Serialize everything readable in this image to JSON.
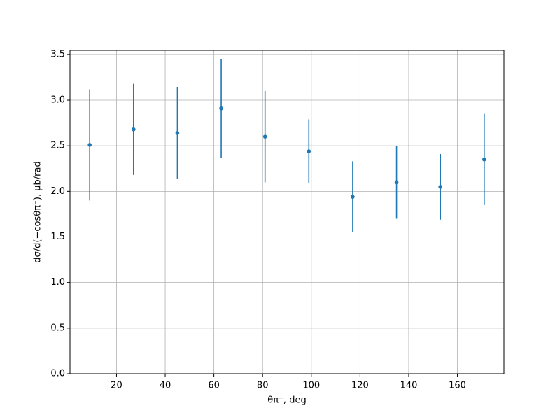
{
  "chart_data": {
    "type": "scatter",
    "x_label": "θπ⁻, deg",
    "y_label": "dσ/d(−cosθπ⁻), μb/rad",
    "x": [
      9,
      27,
      45,
      63,
      81,
      99,
      117,
      135,
      153,
      171
    ],
    "series": [
      {
        "color": "#1f77b4",
        "values": [
          2.51,
          2.68,
          2.64,
          2.91,
          2.6,
          2.44,
          1.94,
          2.1,
          2.05,
          2.35
        ],
        "errors": [
          0.61,
          0.5,
          0.5,
          0.54,
          0.5,
          0.35,
          0.39,
          0.4,
          0.36,
          0.5
        ]
      }
    ],
    "xlim": [
      0.9,
      179.1
    ],
    "ylim": [
      0,
      3.545
    ],
    "xticks": [
      20,
      40,
      60,
      80,
      100,
      120,
      140,
      160
    ],
    "yticks": [
      {
        "value": 0,
        "label": "0.0"
      },
      0.5,
      {
        "value": 1,
        "label": "1.0"
      },
      1.5,
      {
        "value": 2,
        "label": "2.0"
      },
      2.5,
      {
        "value": 3,
        "label": "3.0"
      },
      3.5
    ],
    "grid": true
  }
}
